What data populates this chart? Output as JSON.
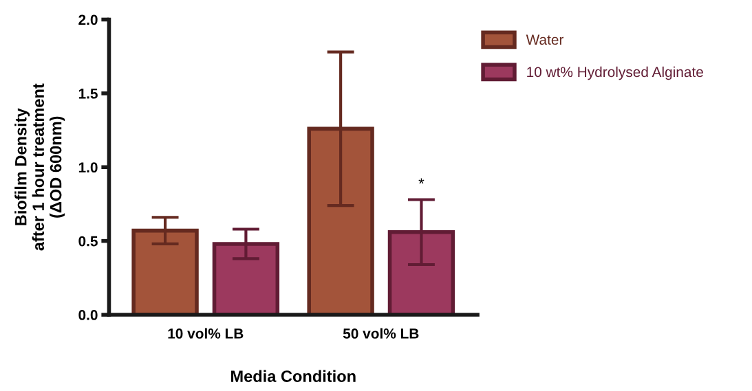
{
  "chart_data": {
    "type": "bar",
    "xlabel": "Media Condition",
    "ylabel": "Biofilm Density\nafter 1 hour treatment\n(ΔOD 600nm)",
    "categories": [
      "10 vol% LB",
      "50 vol% LB"
    ],
    "series": [
      {
        "name": "Water",
        "color": "#a3543a",
        "values": [
          0.57,
          1.26
        ],
        "errors": [
          0.09,
          0.52
        ]
      },
      {
        "name": "10 wt% Hydrolysed Alginate",
        "color": "#9c395e",
        "values": [
          0.48,
          0.56
        ],
        "errors": [
          0.1,
          0.22
        ]
      }
    ],
    "ylim": [
      0,
      2.0
    ],
    "yticks": [
      {
        "value": 0,
        "label": "0.0"
      },
      0.5,
      {
        "value": 1,
        "label": "1.0"
      },
      1.5,
      {
        "value": 2,
        "label": "2.0"
      }
    ],
    "annotations": [
      "*"
    ],
    "legend": "top right",
    "grid": false
  }
}
